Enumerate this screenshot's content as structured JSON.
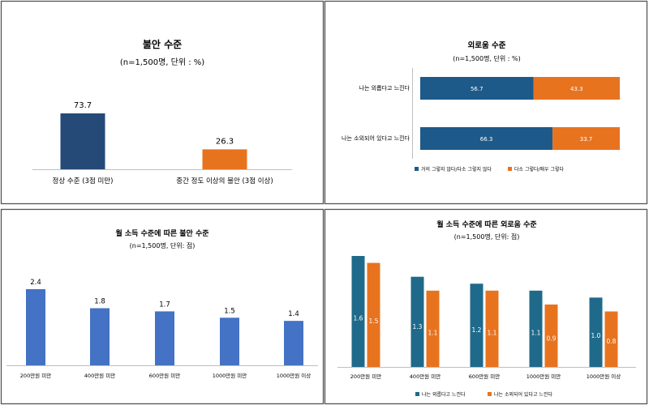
{
  "chart_data": [
    {
      "type": "bar",
      "title": "불안 수준",
      "subtitle": "(n=1,500명, 단위 : %)",
      "categories": [
        "정상 수준 (3점 미만)",
        "중간 정도 이상의 불안 (3점 이상)"
      ],
      "values": [
        73.7,
        26.3
      ],
      "value_labels": [
        "73.7",
        "26.3"
      ],
      "colors": [
        "#254a77",
        "#e8731f"
      ],
      "ylim": [
        0,
        100
      ],
      "grid": false
    },
    {
      "type": "bar",
      "orientation": "horizontal",
      "stacked": true,
      "title": "외로움 수준",
      "subtitle": "(n=1,500명, 단위 : %)",
      "categories": [
        "나는 외롭다고 느낀다",
        "나는 소외되어 있다고 느낀다"
      ],
      "series": [
        {
          "name": "거의 그렇지 않다/다소 그렇지 않다",
          "values": [
            56.7,
            66.3
          ],
          "value_labels": [
            "56.7",
            "66.3"
          ],
          "color": "#1d5a8a"
        },
        {
          "name": "다소 그렇다/매우 그렇다",
          "values": [
            43.3,
            33.7
          ],
          "value_labels": [
            "43.3",
            "33.7"
          ],
          "color": "#e8731f"
        }
      ],
      "xlim": [
        0,
        100
      ],
      "legend": "bottom",
      "grid": false
    },
    {
      "type": "bar",
      "title": "월 소득 수준에 따른 불안 수준",
      "subtitle": "(n=1,500명, 단위: 점)",
      "categories": [
        "200만원 미만",
        "400만원 미만",
        "600만원 미만",
        "1000만원 미만",
        "1000만원 이상"
      ],
      "values": [
        2.4,
        1.8,
        1.7,
        1.5,
        1.4
      ],
      "value_labels": [
        "2.4",
        "1.8",
        "1.7",
        "1.5",
        "1.4"
      ],
      "color": "#4472c4",
      "ylim": [
        0,
        3
      ],
      "grid": false
    },
    {
      "type": "bar",
      "title": "월 소득 수준에 따른 외로움 수준",
      "subtitle": "(n=1,500명, 단위: 점)",
      "categories": [
        "200만원 미만",
        "400만원 미만",
        "600만원 미만",
        "1000만원 미만",
        "1000만원 이상"
      ],
      "series": [
        {
          "name": "나는 외롭다고 느낀다",
          "values": [
            1.6,
            1.3,
            1.2,
            1.1,
            1.0
          ],
          "value_labels": [
            "1.6",
            "1.3",
            "1.2",
            "1.1",
            "1.0"
          ],
          "color": "#1f6a8a"
        },
        {
          "name": "나는 소외되어 있다고 느낀다",
          "values": [
            1.5,
            1.1,
            1.1,
            0.9,
            0.8
          ],
          "value_labels": [
            "1.5",
            "1.1",
            "1.1",
            "0.9",
            "0.8"
          ],
          "color": "#e8731f"
        }
      ],
      "ylim": [
        0,
        1.7
      ],
      "legend": "bottom",
      "grid": false
    }
  ]
}
